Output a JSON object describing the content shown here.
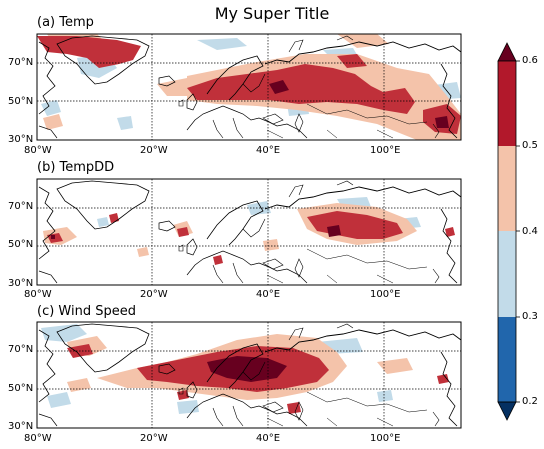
{
  "figure": {
    "super_title": "My Super Title",
    "panels": [
      {
        "id": "a",
        "title": "(a) Temp",
        "lat_labels": [
          "70°N",
          "50°N",
          "30°N"
        ],
        "lon_labels": [
          "80°W",
          "20°W",
          "40°E",
          "100°E"
        ]
      },
      {
        "id": "b",
        "title": "(b) TempDD",
        "lat_labels": [
          "70°N",
          "50°N",
          "30°N"
        ],
        "lon_labels": [
          "80°W",
          "20°W",
          "40°E",
          "100°E"
        ]
      },
      {
        "id": "c",
        "title": "(c) Wind Speed",
        "lat_labels": [
          "70°N",
          "50°N",
          "30°N"
        ],
        "lon_labels": [
          "80°W",
          "20°W",
          "40°E",
          "100°E"
        ]
      }
    ],
    "colorbar": {
      "levels": [
        "0.6",
        "0.5",
        "0.4",
        "0.3",
        "0.2"
      ],
      "colors": [
        "#b2182b",
        "#f4c3aa",
        "#c2dbe9",
        "#2166ac"
      ],
      "extend": "both",
      "over_color": "#67001f",
      "under_color": "#053061"
    },
    "colors": {
      "deep_red": "#67001f",
      "red": "#c0303a",
      "salmon": "#f4c3aa",
      "light_blue": "#c2dbe9"
    }
  },
  "chart_data": {
    "type": "map",
    "projection": "plate-carree",
    "extent": {
      "lon": [
        -80,
        130
      ],
      "lat": [
        30,
        85
      ]
    },
    "gridlines": {
      "lon": [
        -80,
        -20,
        40,
        100
      ],
      "lat": [
        30,
        50,
        70
      ]
    },
    "color_levels": [
      0.2,
      0.3,
      0.4,
      0.5,
      0.6
    ],
    "panels": [
      "(a) Temp",
      "(b) TempDD",
      "(c) Wind Speed"
    ]
  }
}
